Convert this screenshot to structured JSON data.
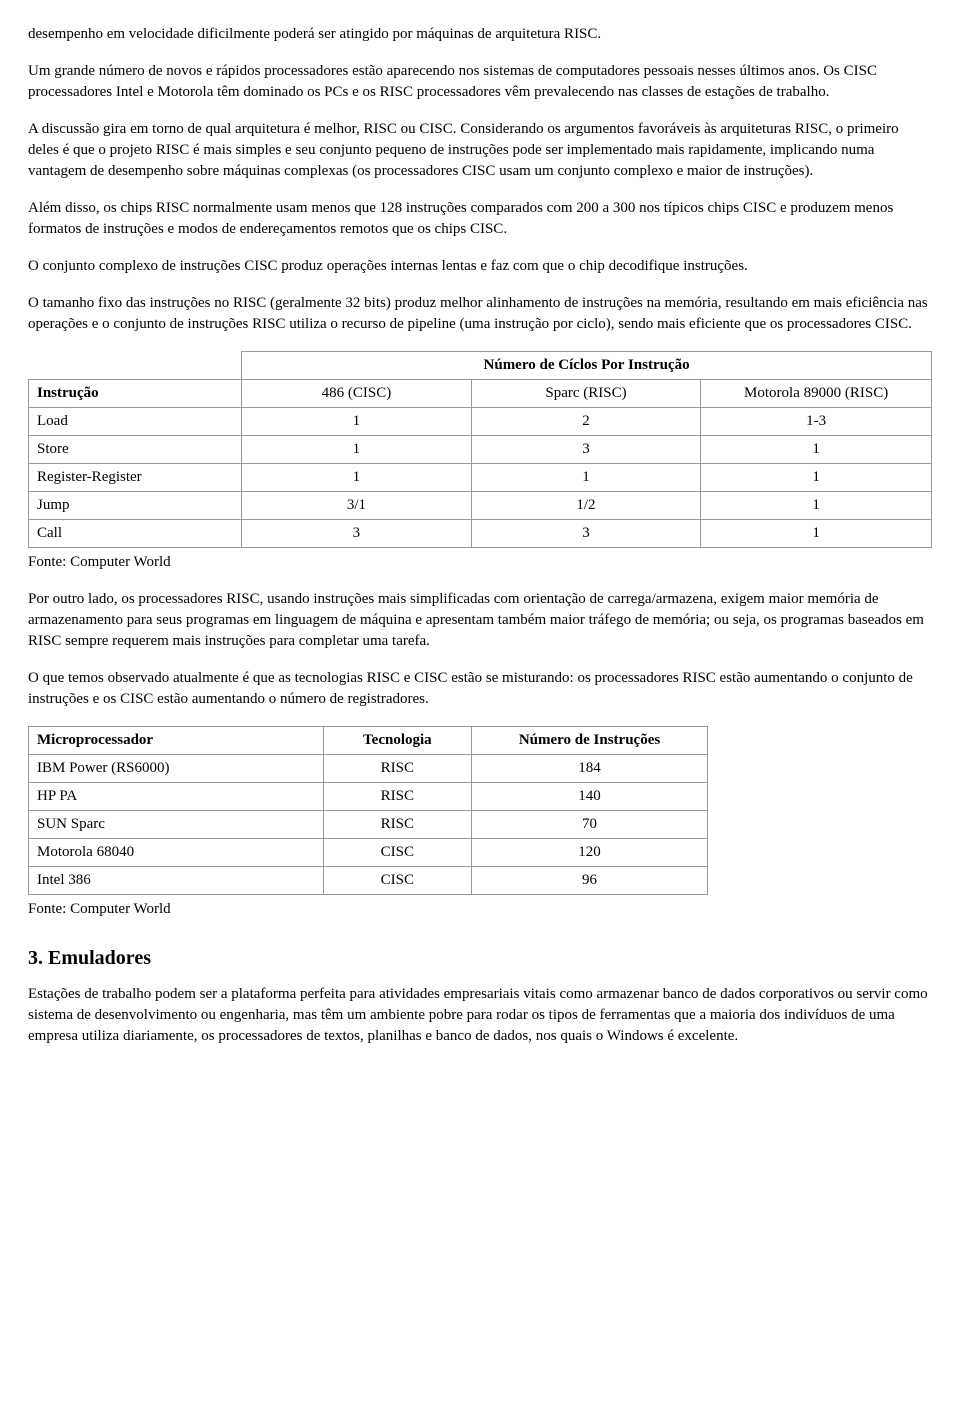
{
  "paragraphs": {
    "p1": "desempenho em velocidade dificilmente poderá ser atingido por máquinas de arquitetura RISC.",
    "p2": "Um grande número de novos e rápidos processadores estão aparecendo nos sistemas de computadores pessoais nesses últimos anos. Os CISC processadores Intel e Motorola têm dominado os PCs e os RISC processadores vêm prevalecendo nas classes de estações de trabalho.",
    "p3": "A discussão gira em torno de qual arquitetura é melhor, RISC ou CISC. Considerando os argumentos favoráveis às arquiteturas RISC, o primeiro deles é que o projeto RISC é mais simples e seu conjunto pequeno de instruções pode ser implementado mais rapidamente, implicando numa vantagem de desempenho sobre máquinas complexas (os processadores CISC usam um conjunto complexo e maior de instruções).",
    "p4": "Além disso, os chips RISC normalmente usam menos que 128 instruções comparados com 200 a 300 nos típicos chips CISC e produzem menos formatos de instruções e modos de endereçamentos remotos que os chips CISC.",
    "p5": "O conjunto complexo de instruções CISC produz operações internas lentas e faz com que o chip decodifique instruções.",
    "p6": "O tamanho fixo das instruções no RISC (geralmente 32 bits) produz melhor alinhamento de instruções na memória, resultando em mais eficiência nas operações e o conjunto de instruções RISC utiliza o recurso de pipeline (uma instrução por ciclo), sendo mais eficiente que os processadores CISC.",
    "p7": "Por outro lado, os processadores RISC, usando instruções mais simplificadas com orientação de carrega/armazena, exigem maior memória de armazenamento para seus programas em linguagem de máquina e apresentam também maior tráfego de memória; ou seja, os programas baseados em RISC sempre requerem mais instruções para completar uma tarefa.",
    "p8": "O que temos observado atualmente é que as tecnologias RISC e CISC estão se misturando: os processadores RISC estão aumentando o conjunto de instruções e os CISC estão aumentando o número de registradores.",
    "p9": "Estações de trabalho podem ser a plataforma perfeita para atividades empresariais vitais como armazenar banco de dados corporativos ou servir como sistema de desenvolvimento ou engenharia, mas têm um ambiente pobre para rodar os tipos de ferramentas que a maioria dos indivíduos de uma empresa utiliza diariamente, os processadores de textos, planilhas e banco de dados, nos quais o Windows é excelente."
  },
  "table1": {
    "span_header": "Número de Cíclos Por Instrução",
    "columns": [
      "Instrução",
      "486 (CISC)",
      "Sparc (RISC)",
      "Motorola 89000 (RISC)"
    ],
    "rows": [
      [
        "Load",
        "1",
        "2",
        "1-3"
      ],
      [
        "Store",
        "1",
        "3",
        "1"
      ],
      [
        "Register-Register",
        "1",
        "1",
        "1"
      ],
      [
        "Jump",
        "3/1",
        "1/2",
        "1"
      ],
      [
        "Call",
        "3",
        "3",
        "1"
      ]
    ],
    "fonte": "Fonte: Computer World"
  },
  "table2": {
    "columns": [
      "Microprocessador",
      "Tecnologia",
      "Número de Instruções"
    ],
    "rows": [
      [
        "IBM Power (RS6000)",
        "RISC",
        "184"
      ],
      [
        "HP PA",
        "RISC",
        "140"
      ],
      [
        "SUN Sparc",
        "RISC",
        "70"
      ],
      [
        "Motorola 68040",
        "CISC",
        "120"
      ],
      [
        "Intel 386",
        "CISC",
        "96"
      ]
    ],
    "fonte": "Fonte: Computer World"
  },
  "heading": "3. Emuladores"
}
